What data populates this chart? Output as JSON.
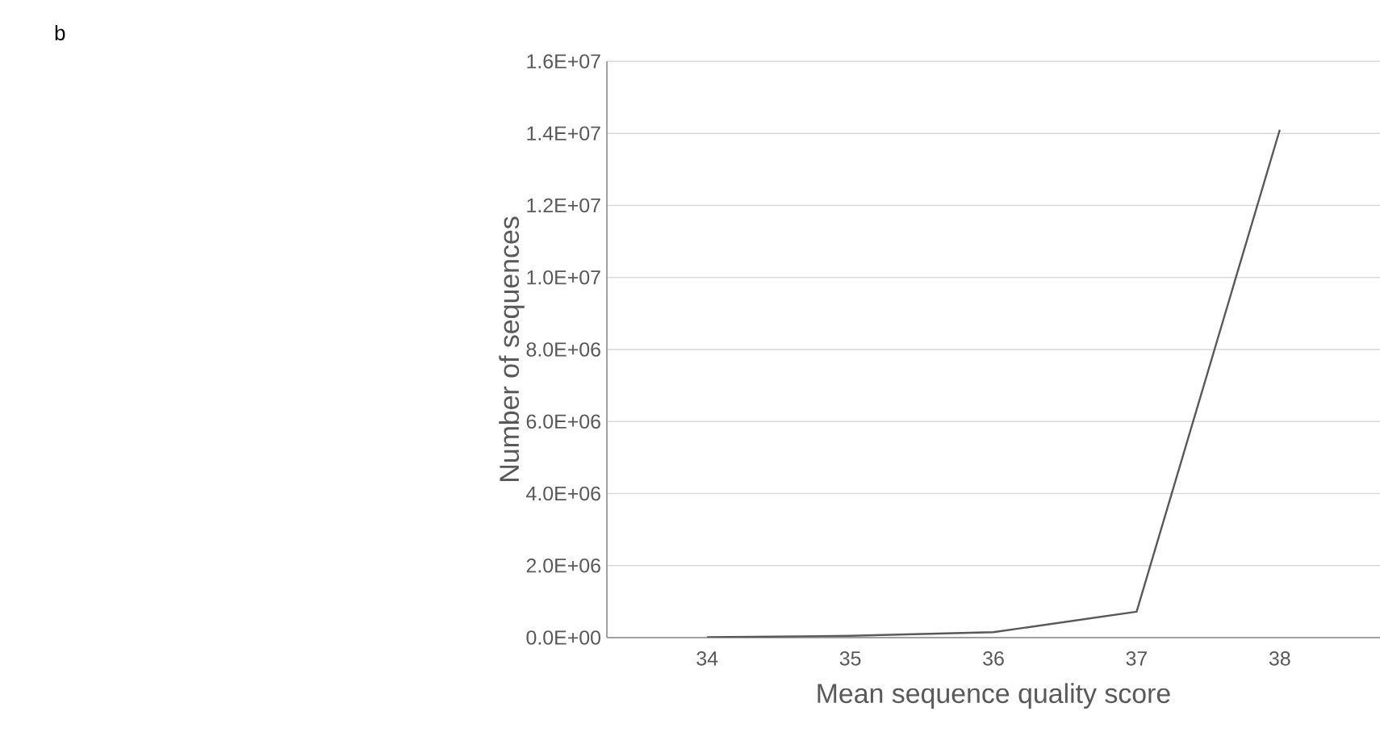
{
  "chart_data": {
    "type": "line",
    "title": "b",
    "xlabel": "Mean sequence quality score",
    "ylabel": "Number of sequences",
    "categories": [
      "34",
      "35",
      "36",
      "37",
      "38"
    ],
    "series": [
      {
        "color": "#595959",
        "values": [
          10000,
          50000,
          150000,
          720000,
          14100000
        ]
      }
    ],
    "ylim": [
      0,
      16000000
    ],
    "yticks": [
      {
        "value": 0,
        "label": "0.0E+00"
      },
      {
        "value": 2000000,
        "label": "2.0E+06"
      },
      {
        "value": 4000000,
        "label": "4.0E+06"
      },
      {
        "value": 6000000,
        "label": "6.0E+06"
      },
      {
        "value": 8000000,
        "label": "8.0E+06"
      },
      {
        "value": 10000000,
        "label": "1.0E+07"
      },
      {
        "value": 12000000,
        "label": "1.2E+07"
      },
      {
        "value": 14000000,
        "label": "1.4E+07"
      },
      {
        "value": 16000000,
        "label": "1.6E+07"
      }
    ],
    "grid": "y",
    "marker": "none",
    "line_style": "solid"
  }
}
